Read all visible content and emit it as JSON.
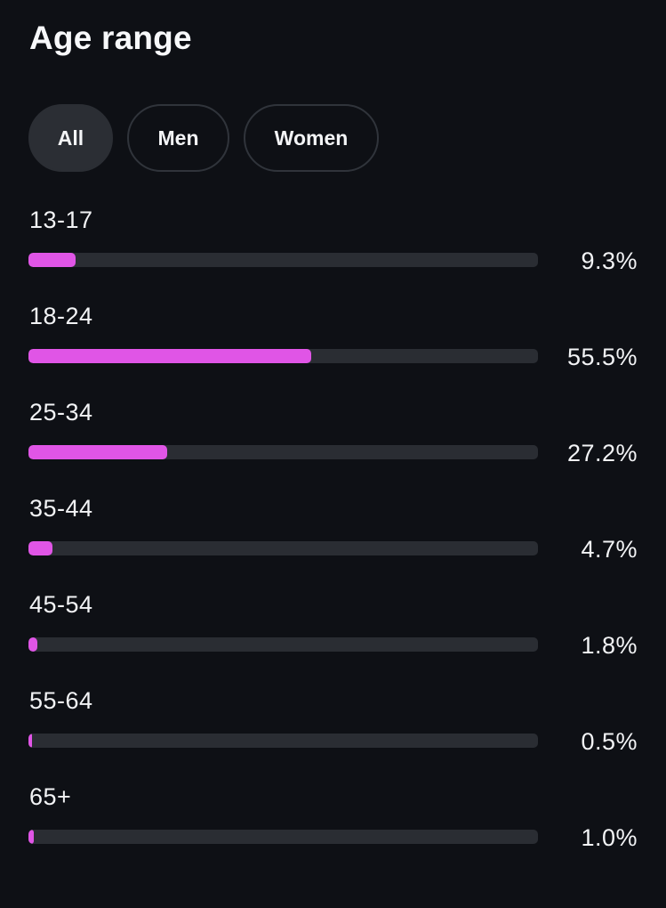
{
  "title": "Age range",
  "filters": [
    {
      "label": "All",
      "active": true
    },
    {
      "label": "Men",
      "active": false
    },
    {
      "label": "Women",
      "active": false
    }
  ],
  "bar_color": "#e055e6",
  "track_color": "#2a2d33",
  "age_ranges": [
    {
      "label": "13-17",
      "percent_text": "9.3%",
      "value": 9.3
    },
    {
      "label": "18-24",
      "percent_text": "55.5%",
      "value": 55.5
    },
    {
      "label": "25-34",
      "percent_text": "27.2%",
      "value": 27.2
    },
    {
      "label": "35-44",
      "percent_text": "4.7%",
      "value": 4.7
    },
    {
      "label": "45-54",
      "percent_text": "1.8%",
      "value": 1.8
    },
    {
      "label": "55-64",
      "percent_text": "0.5%",
      "value": 0.5
    },
    {
      "label": "65+",
      "percent_text": "1.0%",
      "value": 1.0
    }
  ]
}
